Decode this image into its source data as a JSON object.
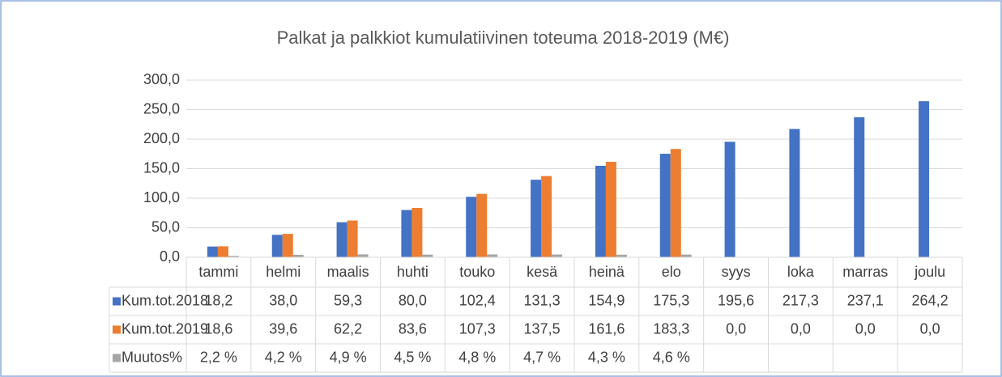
{
  "chart_data": {
    "type": "bar",
    "title": "Palkat ja palkkiot kumulatiivinen toteuma 2018-2019 (M€)",
    "categories": [
      "tammi",
      "helmi",
      "maalis",
      "huhti",
      "touko",
      "kesä",
      "heinä",
      "elo",
      "syys",
      "loka",
      "marras",
      "joulu"
    ],
    "series": [
      {
        "name": "Kum.tot.2018",
        "color": "#4472c4",
        "values": [
          18.2,
          38.0,
          59.3,
          80.0,
          102.4,
          131.3,
          154.9,
          175.3,
          195.6,
          217.3,
          237.1,
          264.2
        ],
        "value_labels": [
          "18,2",
          "38,0",
          "59,3",
          "80,0",
          "102,4",
          "131,3",
          "154,9",
          "175,3",
          "195,6",
          "217,3",
          "237,1",
          "264,2"
        ]
      },
      {
        "name": "Kum.tot.2019",
        "color": "#ed7d31",
        "values": [
          18.6,
          39.6,
          62.2,
          83.6,
          107.3,
          137.5,
          161.6,
          183.3,
          0.0,
          0.0,
          0.0,
          0.0
        ],
        "value_labels": [
          "18,6",
          "39,6",
          "62,2",
          "83,6",
          "107,3",
          "137,5",
          "161,6",
          "183,3",
          "0,0",
          "0,0",
          "0,0",
          "0,0"
        ]
      },
      {
        "name": "Muutos%",
        "color": "#a5a5a5",
        "values": [
          2.2,
          4.2,
          4.9,
          4.5,
          4.8,
          4.7,
          4.3,
          4.6,
          null,
          null,
          null,
          null
        ],
        "value_labels": [
          "2,2 %",
          "4,2 %",
          "4,9 %",
          "4,5 %",
          "4,8 %",
          "4,7 %",
          "4,3 %",
          "4,6 %",
          null,
          null,
          null,
          null
        ]
      }
    ],
    "ylim": [
      0,
      300
    ],
    "yticks": [
      {
        "value": 0,
        "label": "0,0"
      },
      {
        "value": 50,
        "label": "50,0"
      },
      {
        "value": 100,
        "label": "100,0"
      },
      {
        "value": 150,
        "label": "150,0"
      },
      {
        "value": 200,
        "label": "200,0"
      },
      {
        "value": 250,
        "label": "250,0"
      },
      {
        "value": 300,
        "label": "300,0"
      }
    ],
    "grid": true
  }
}
